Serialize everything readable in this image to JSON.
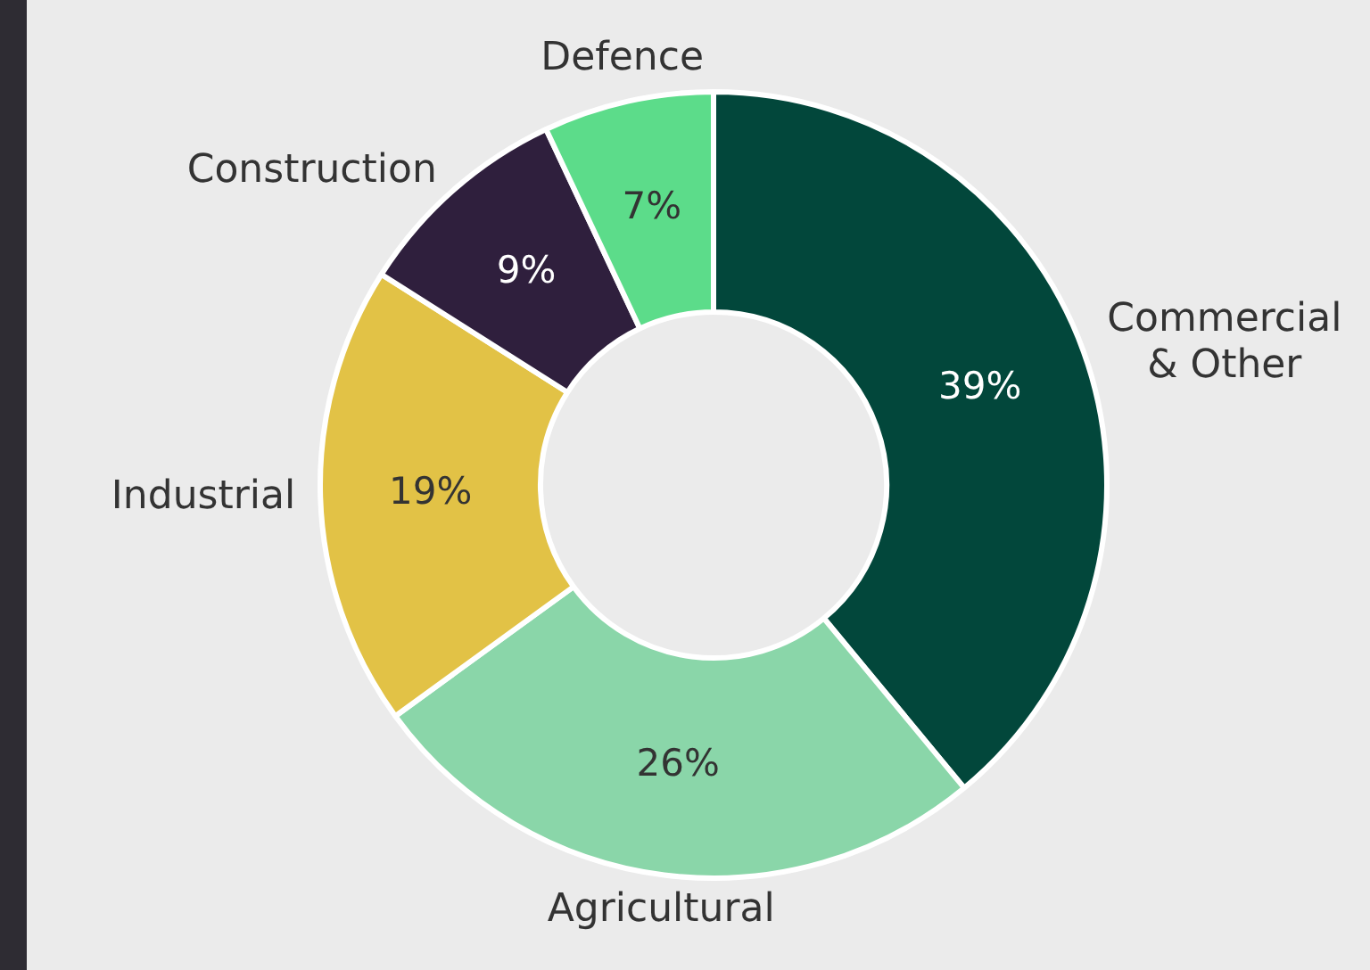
{
  "chart_data": {
    "type": "donut",
    "categories": [
      "Commercial & Other",
      "Agricultural",
      "Industrial",
      "Construction",
      "Defence"
    ],
    "values": [
      39,
      26,
      19,
      9,
      7
    ],
    "colors": [
      "#02473b",
      "#8ad6a9",
      "#e2c246",
      "#2f1f3d",
      "#5cdc8a"
    ],
    "value_labels": [
      "39%",
      "26%",
      "19%",
      "9%",
      "7%"
    ],
    "legend": false
  }
}
